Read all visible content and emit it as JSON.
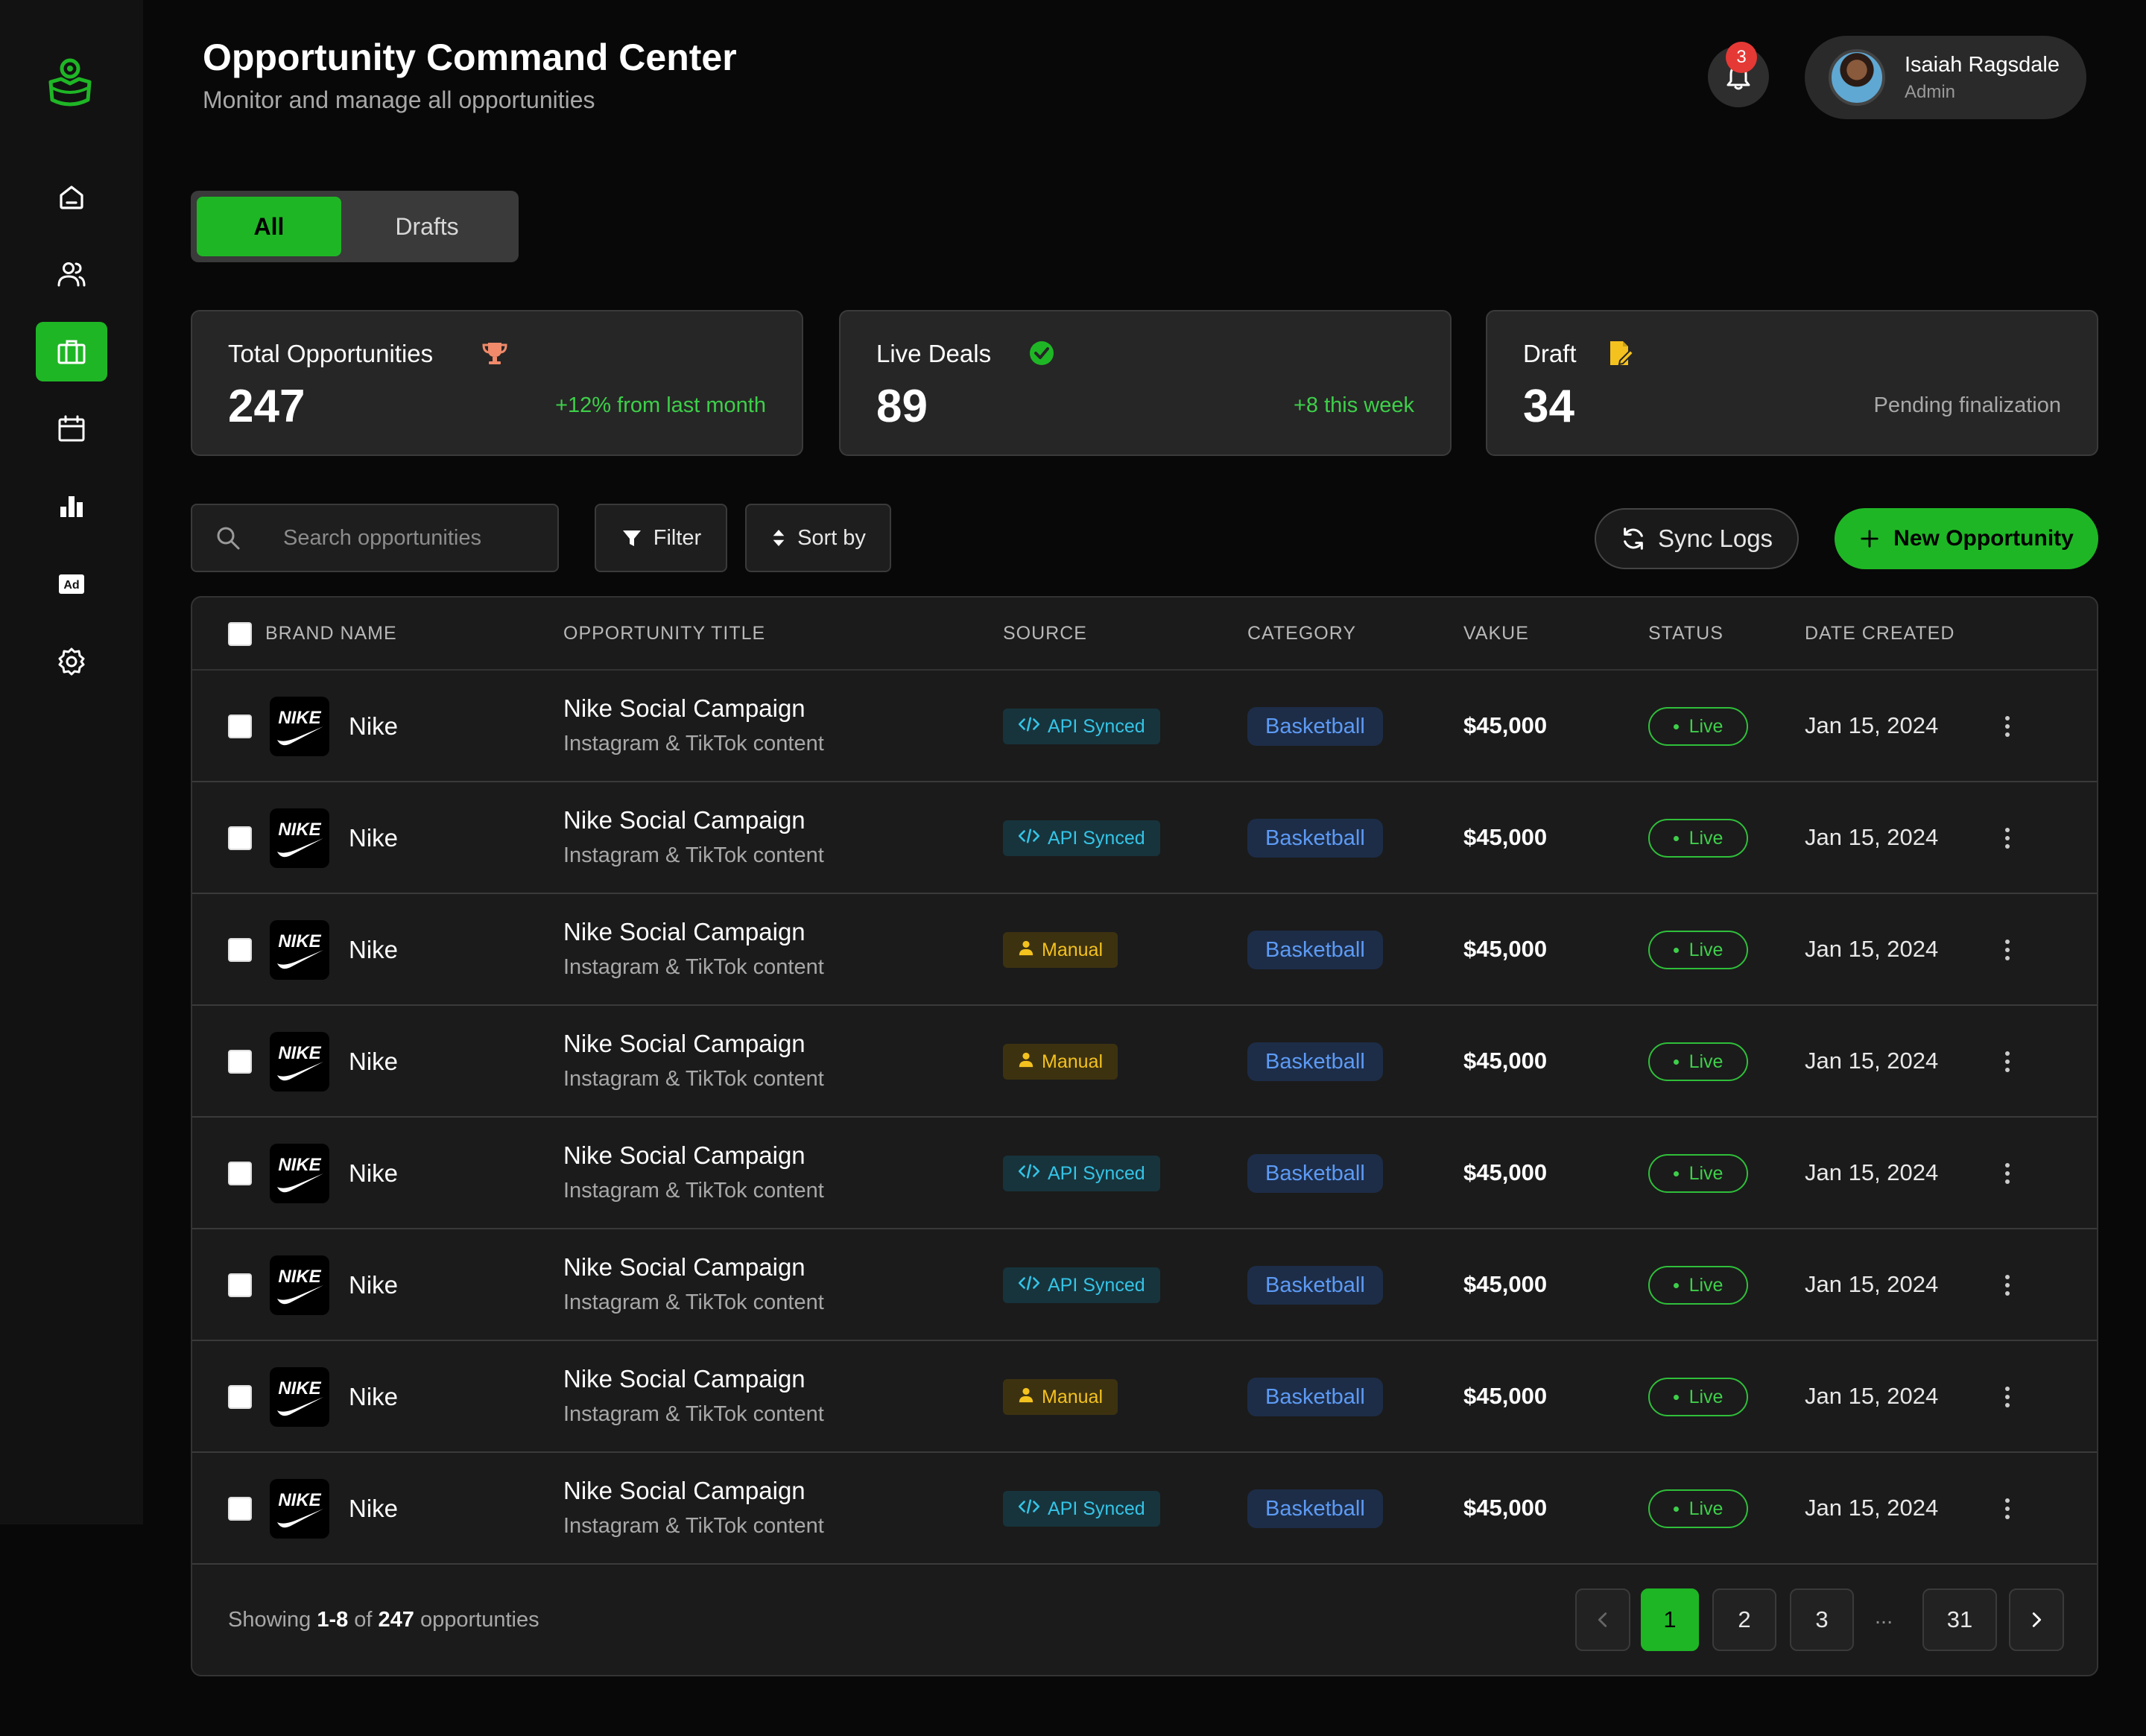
{
  "header": {
    "title": "Opportunity Command Center",
    "subtitle": "Monitor and manage all opportunities",
    "notification_count": "3",
    "user": {
      "name": "Isaiah Ragsdale",
      "role": "Admin"
    }
  },
  "sidebar": {
    "items": [
      {
        "name": "home",
        "icon": "home-icon"
      },
      {
        "name": "users",
        "icon": "users-icon"
      },
      {
        "name": "opportunities",
        "icon": "briefcase-icon",
        "active": true
      },
      {
        "name": "calendar",
        "icon": "calendar-icon"
      },
      {
        "name": "analytics",
        "icon": "bar-chart-icon"
      },
      {
        "name": "ads",
        "icon": "ad-icon",
        "text": "Ad"
      },
      {
        "name": "settings",
        "icon": "gear-icon"
      }
    ]
  },
  "tabs": {
    "all": "All",
    "drafts": "Drafts"
  },
  "stats": {
    "total": {
      "label": "Total Opportunities",
      "value": "247",
      "note": "+12% from last month"
    },
    "live": {
      "label": "Live Deals",
      "value": "89",
      "note": "+8 this week"
    },
    "draft": {
      "label": "Draft",
      "value": "34",
      "note": "Pending finalization"
    }
  },
  "toolbar": {
    "search_placeholder": "Search opportunities",
    "filter_label": "Filter",
    "sort_label": "Sort by",
    "sync_label": "Sync Logs",
    "new_label": "New Opportunity"
  },
  "table": {
    "columns": [
      "BRAND NAME",
      "OPPORTUNITY TITLE",
      "SOURCE",
      "CATEGORY",
      "VAKUE",
      "STATUS",
      "DATE CREATED"
    ],
    "brand_logo_text": "NIKE",
    "rows": [
      {
        "brand": "Nike",
        "title": "Nike Social Campaign",
        "subtitle": "Instagram & TikTok content",
        "source": "API Synced",
        "source_type": "api",
        "category": "Basketball",
        "value": "$45,000",
        "status": "Live",
        "date": "Jan 15, 2024"
      },
      {
        "brand": "Nike",
        "title": "Nike Social Campaign",
        "subtitle": "Instagram & TikTok content",
        "source": "API Synced",
        "source_type": "api",
        "category": "Basketball",
        "value": "$45,000",
        "status": "Live",
        "date": "Jan 15, 2024"
      },
      {
        "brand": "Nike",
        "title": "Nike Social Campaign",
        "subtitle": "Instagram & TikTok content",
        "source": "Manual",
        "source_type": "manual",
        "category": "Basketball",
        "value": "$45,000",
        "status": "Live",
        "date": "Jan 15, 2024"
      },
      {
        "brand": "Nike",
        "title": "Nike Social Campaign",
        "subtitle": "Instagram & TikTok content",
        "source": "Manual",
        "source_type": "manual",
        "category": "Basketball",
        "value": "$45,000",
        "status": "Live",
        "date": "Jan 15, 2024"
      },
      {
        "brand": "Nike",
        "title": "Nike Social Campaign",
        "subtitle": "Instagram & TikTok content",
        "source": "API Synced",
        "source_type": "api",
        "category": "Basketball",
        "value": "$45,000",
        "status": "Live",
        "date": "Jan 15, 2024"
      },
      {
        "brand": "Nike",
        "title": "Nike Social Campaign",
        "subtitle": "Instagram & TikTok content",
        "source": "API Synced",
        "source_type": "api",
        "category": "Basketball",
        "value": "$45,000",
        "status": "Live",
        "date": "Jan 15, 2024"
      },
      {
        "brand": "Nike",
        "title": "Nike Social Campaign",
        "subtitle": "Instagram & TikTok content",
        "source": "Manual",
        "source_type": "manual",
        "category": "Basketball",
        "value": "$45,000",
        "status": "Live",
        "date": "Jan 15, 2024"
      },
      {
        "brand": "Nike",
        "title": "Nike Social Campaign",
        "subtitle": "Instagram & TikTok content",
        "source": "API Synced",
        "source_type": "api",
        "category": "Basketball",
        "value": "$45,000",
        "status": "Live",
        "date": "Jan 15, 2024"
      }
    ]
  },
  "footer": {
    "showing_prefix": "Showing",
    "showing_range": "1-8",
    "showing_of": "of",
    "showing_total": "247",
    "showing_suffix": "opportunties",
    "pages": [
      "1",
      "2",
      "3",
      "31"
    ],
    "ellipsis": "...",
    "current_page": "1"
  },
  "colors": {
    "accent": "#1fb626",
    "background": "#080808",
    "api_badge": "#35c4e6",
    "manual_badge": "#f4c21f",
    "category_badge": "#5d9bf5",
    "live_status": "#3ecf4a"
  }
}
